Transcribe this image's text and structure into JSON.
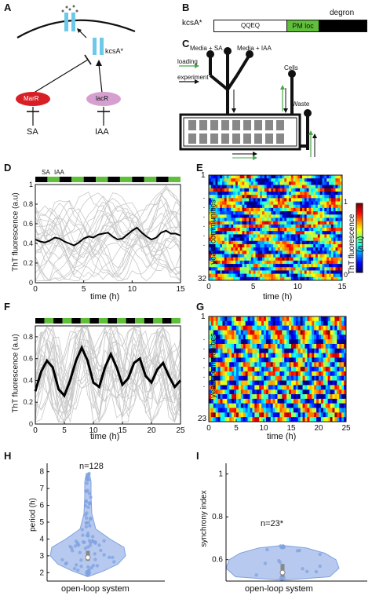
{
  "panels": {
    "A": {
      "letter": "A",
      "kcsa": "kcsA*",
      "marr": "MarR",
      "lacr": "lacR",
      "sa": "SA",
      "iaa": "IAA"
    },
    "B": {
      "letter": "B",
      "kcsa": "kcsA*",
      "qqeq": "QQEQ",
      "pmloc": "PM loc",
      "degron": "degron"
    },
    "C": {
      "letter": "C",
      "media_sa": "Media + SA",
      "media_iaa": "Media + IAA",
      "cells": "Cells",
      "waste": "Waste",
      "loading": "loading",
      "experiment": "experiment"
    },
    "D": {
      "letter": "D",
      "ylabel": "ThT fluorescence (a.u)",
      "xlabel": "time (h)",
      "sa_tag": "SA",
      "iaa_tag": "IAA",
      "yticks": [
        "0",
        "0.2",
        "0.4",
        "0.6",
        "0.8",
        "1"
      ],
      "xticks": [
        "0",
        "5",
        "10",
        "15"
      ]
    },
    "E": {
      "letter": "E",
      "ylabel": "yeast communities",
      "xlabel": "time (h)",
      "ytop": "1",
      "ybottom": "32",
      "xticks": [
        "0",
        "5",
        "10",
        "15"
      ],
      "cbar_label": "ThT fluorescence (a.u)",
      "cbar_top": "1",
      "cbar_bottom": "0"
    },
    "F": {
      "letter": "F",
      "ylabel": "ThT fluorescence (a.u)",
      "xlabel": "time (h)",
      "yticks": [
        "0",
        "0.2",
        "0.4",
        "0.6",
        "0.8"
      ],
      "xticks": [
        "0",
        "5",
        "10",
        "15",
        "20",
        "25"
      ]
    },
    "G": {
      "letter": "G",
      "ylabel": "yeast communities",
      "xlabel": "time (h)",
      "ytop": "1",
      "ybottom": "23",
      "xticks": [
        "0",
        "5",
        "10",
        "15",
        "20",
        "25"
      ]
    },
    "H": {
      "letter": "H",
      "ylabel": "period (h)",
      "xlabel": "open-loop system",
      "n": "n=128",
      "yticks": [
        "2",
        "3",
        "4",
        "5",
        "6",
        "7",
        "8"
      ]
    },
    "I": {
      "letter": "I",
      "ylabel": "synchrony index",
      "xlabel": "open-loop system",
      "n": "n=23*",
      "yticks": [
        "0.6",
        "0.8",
        "1"
      ]
    }
  },
  "chart_data": [
    {
      "id": "D",
      "type": "line",
      "xlim": [
        0,
        15
      ],
      "ylim": [
        0,
        1
      ],
      "mean_series": {
        "x": [
          0,
          0.5,
          1,
          1.5,
          2,
          2.5,
          3,
          3.5,
          4,
          4.5,
          5,
          5.5,
          6,
          6.5,
          7,
          7.5,
          8,
          8.5,
          9,
          9.5,
          10,
          10.5,
          11,
          11.5,
          12,
          12.5,
          13,
          13.5,
          14,
          14.5,
          15
        ],
        "y": [
          0.44,
          0.42,
          0.41,
          0.43,
          0.46,
          0.45,
          0.42,
          0.4,
          0.38,
          0.41,
          0.45,
          0.47,
          0.46,
          0.49,
          0.5,
          0.51,
          0.47,
          0.44,
          0.45,
          0.49,
          0.53,
          0.56,
          0.51,
          0.47,
          0.44,
          0.46,
          0.51,
          0.53,
          0.5,
          0.5,
          0.48
        ]
      },
      "stimulus_schedule": {
        "colors": {
          "SA": "#000000",
          "IAA": "#5fbf3a"
        },
        "blocks": [
          "SA",
          "IAA",
          "SA",
          "IAA",
          "SA",
          "IAA",
          "SA",
          "IAA",
          "SA",
          "IAA",
          "SA",
          "IAA"
        ]
      }
    },
    {
      "id": "F",
      "type": "line",
      "xlim": [
        0,
        25
      ],
      "ylim": [
        0,
        0.9
      ],
      "mean_series": {
        "x": [
          0,
          1,
          2,
          3,
          4,
          5,
          6,
          7,
          8,
          9,
          10,
          11,
          12,
          13,
          14,
          15,
          16,
          17,
          18,
          19,
          20,
          21,
          22,
          23,
          24,
          25
        ],
        "y": [
          0.3,
          0.48,
          0.58,
          0.52,
          0.32,
          0.26,
          0.4,
          0.58,
          0.7,
          0.58,
          0.38,
          0.34,
          0.52,
          0.64,
          0.52,
          0.36,
          0.42,
          0.56,
          0.6,
          0.44,
          0.38,
          0.5,
          0.56,
          0.44,
          0.34,
          0.4
        ]
      },
      "stimulus_schedule": {
        "colors": {
          "SA": "#000000",
          "IAA": "#5fbf3a"
        },
        "blocks": [
          "SA",
          "IAA",
          "SA",
          "IAA",
          "SA",
          "IAA",
          "SA",
          "IAA",
          "SA",
          "IAA",
          "SA",
          "IAA",
          "SA",
          "IAA",
          "SA",
          "IAA"
        ]
      }
    },
    {
      "id": "E",
      "type": "heatmap",
      "rows": 32,
      "xlim": [
        0,
        15
      ],
      "colormap": "jet"
    },
    {
      "id": "G",
      "type": "heatmap",
      "rows": 23,
      "xlim": [
        0,
        25
      ],
      "colormap": "jet"
    },
    {
      "id": "H",
      "type": "violin",
      "ylim": [
        1.5,
        8.5
      ],
      "n": 128,
      "median": 2.9,
      "q1": 2.7,
      "q3": 3.3,
      "color": "#7fa2e0"
    },
    {
      "id": "I",
      "type": "violin",
      "ylim": [
        0.5,
        1.05
      ],
      "n": 23,
      "median": 0.54,
      "q1": 0.52,
      "q3": 0.58,
      "color": "#7fa2e0"
    }
  ]
}
